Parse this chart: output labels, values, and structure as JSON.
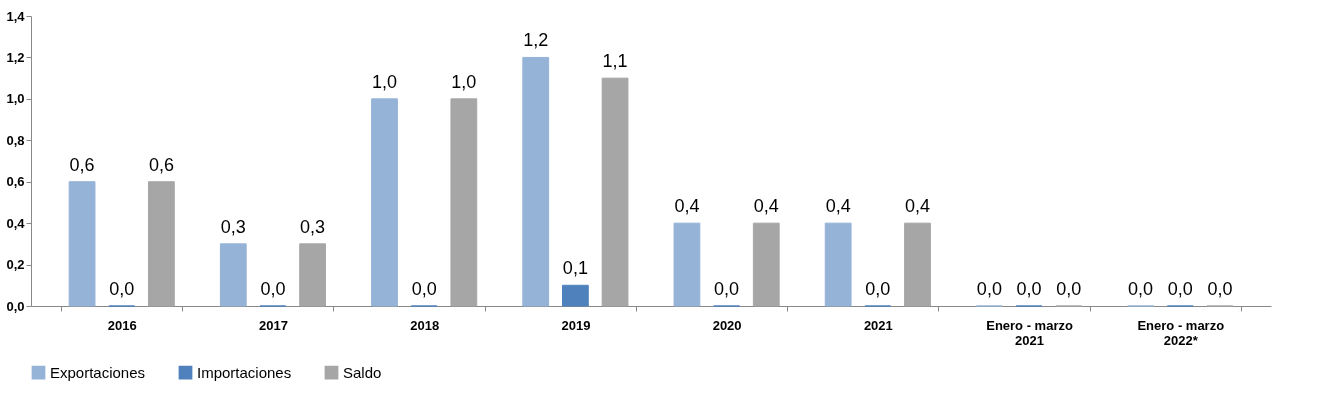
{
  "chart_data": {
    "type": "bar",
    "categories": [
      "2016",
      "2017",
      "2018",
      "2019",
      "2020",
      "2021",
      "Enero - marzo 2021",
      "Enero - marzo 2022*"
    ],
    "series": [
      {
        "name": "Exportaciones",
        "color": "#95b3d7",
        "values": [
          0.6,
          0.3,
          1.0,
          1.2,
          0.4,
          0.4,
          0.0,
          0.0
        ],
        "value_labels": [
          "0,6",
          "0,3",
          "1,0",
          "1,2",
          "0,4",
          "0,4",
          "0,0",
          "0,0"
        ]
      },
      {
        "name": "Importaciones",
        "color": "#4f81bd",
        "values": [
          0.0,
          0.0,
          0.0,
          0.1,
          0.0,
          0.0,
          0.0,
          0.0
        ],
        "value_labels": [
          "0,0",
          "0,0",
          "0,0",
          "0,1",
          "0,0",
          "0,0",
          "0,0",
          "0,0"
        ]
      },
      {
        "name": "Saldo",
        "color": "#a6a6a6",
        "values": [
          0.6,
          0.3,
          1.0,
          1.1,
          0.4,
          0.4,
          0.0,
          0.0
        ],
        "value_labels": [
          "0,6",
          "0,3",
          "1,0",
          "1,1",
          "0,4",
          "0,4",
          "0,0",
          "0,0"
        ]
      }
    ],
    "ylim": [
      0,
      1.4
    ],
    "yticks": [
      {
        "value": 0,
        "label": "0,0"
      },
      {
        "value": 0.2,
        "label": "0,2"
      },
      {
        "value": 0.4,
        "label": "0,4"
      },
      {
        "value": 0.6,
        "label": "0,6"
      },
      {
        "value": 0.8,
        "label": "0,8"
      },
      {
        "value": 1.0,
        "label": "1,0"
      },
      {
        "value": 1.2,
        "label": "1,2"
      },
      {
        "value": 1.4,
        "label": "1,4"
      }
    ],
    "grid": false,
    "legend": "bottom"
  }
}
